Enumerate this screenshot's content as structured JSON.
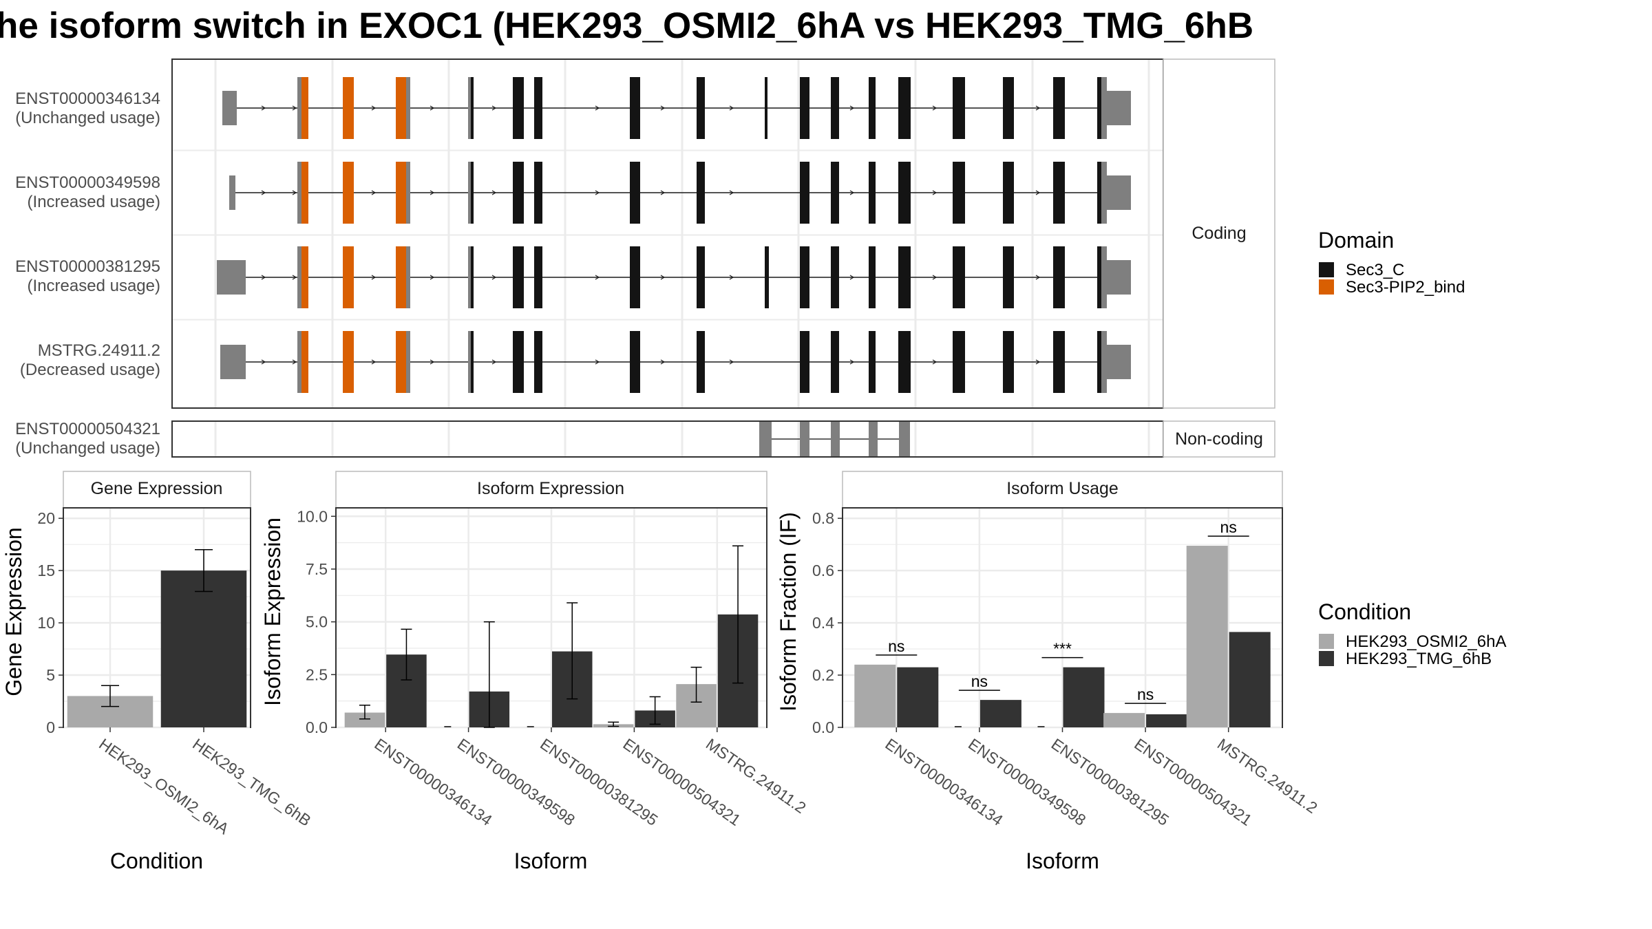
{
  "title": "he isoform switch in EXOC1 (HEK293_OSMI2_6hA vs HEK293_TMG_6hB",
  "colors": {
    "sec3_c": "#141414",
    "sec3_pip2": "#D95F02",
    "utr_gray": "#7F7F7F",
    "cond_a": "#A9A9A9",
    "cond_b": "#333333",
    "panel_border": "#7F7F7F",
    "grid": "#EBEBEB"
  },
  "structure": {
    "strip_coding": "Coding",
    "strip_noncoding": "Non-coding",
    "transcripts": [
      {
        "id": "ENST00000346134",
        "usage": "(Unchanged usage)"
      },
      {
        "id": "ENST00000349598",
        "usage": "(Increased usage)"
      },
      {
        "id": "ENST00000381295",
        "usage": "(Increased usage)"
      },
      {
        "id": "MSTRG.24911.2",
        "usage": "(Decreased usage)"
      },
      {
        "id": "ENST00000504321",
        "usage": "(Unchanged usage)"
      }
    ]
  },
  "legend_domain": {
    "title": "Domain",
    "items": [
      {
        "label": "Sec3_C",
        "color": "#141414"
      },
      {
        "label": "Sec3-PIP2_bind",
        "color": "#D95F02"
      }
    ]
  },
  "legend_condition": {
    "title": "Condition",
    "items": [
      {
        "label": "HEK293_OSMI2_6hA",
        "color": "#A9A9A9"
      },
      {
        "label": "HEK293_TMG_6hB",
        "color": "#333333"
      }
    ]
  },
  "chart_data": [
    {
      "type": "bar",
      "title": "Gene Expression",
      "xlabel": "Condition",
      "ylabel": "Gene Expression",
      "ylim": [
        0,
        21
      ],
      "yticks": [
        "0",
        "5",
        "10",
        "15",
        "20"
      ],
      "categories": [
        "HEK293_OSMI2_6hA",
        "HEK293_TMG_6hB"
      ],
      "values": [
        3.0,
        15.0
      ],
      "err_low": [
        2.0,
        13.0
      ],
      "err_high": [
        4.0,
        17.0
      ]
    },
    {
      "type": "bar",
      "title": "Isoform Expression",
      "xlabel": "Isoform",
      "ylabel": "Isoform Expression",
      "ylim": [
        0,
        10.4
      ],
      "yticks": [
        "0.0",
        "2.5",
        "5.0",
        "7.5",
        "10.0"
      ],
      "categories": [
        "ENST00000346134",
        "ENST00000349598",
        "ENST00000381295",
        "ENST00000504321",
        "MSTRG.24911.2"
      ],
      "series": [
        {
          "name": "HEK293_OSMI2_6hA",
          "values": [
            0.7,
            0.0,
            0.0,
            0.15,
            2.05
          ],
          "err_low": [
            0.4,
            0.0,
            0.0,
            0.05,
            1.2
          ],
          "err_high": [
            1.05,
            0.0,
            0.0,
            0.25,
            2.85
          ]
        },
        {
          "name": "HEK293_TMG_6hB",
          "values": [
            3.45,
            1.7,
            3.6,
            0.8,
            5.35
          ],
          "err_low": [
            2.25,
            0.0,
            1.35,
            0.15,
            2.1
          ],
          "err_high": [
            4.65,
            5.0,
            5.9,
            1.45,
            8.6
          ]
        }
      ]
    },
    {
      "type": "bar",
      "title": "Isoform Usage",
      "xlabel": "Isoform",
      "ylabel": "Isoform Fraction (IF)",
      "ylim": [
        0,
        0.84
      ],
      "yticks": [
        "0.0",
        "0.2",
        "0.4",
        "0.6",
        "0.8"
      ],
      "categories": [
        "ENST00000346134",
        "ENST00000349598",
        "ENST00000381295",
        "ENST00000504321",
        "MSTRG.24911.2"
      ],
      "series": [
        {
          "name": "HEK293_OSMI2_6hA",
          "values": [
            0.24,
            0.0,
            0.0,
            0.055,
            0.695
          ]
        },
        {
          "name": "HEK293_TMG_6hB",
          "values": [
            0.23,
            0.105,
            0.23,
            0.05,
            0.365
          ]
        }
      ],
      "significance": [
        "ns",
        "ns",
        "***",
        "ns",
        "ns"
      ]
    }
  ]
}
